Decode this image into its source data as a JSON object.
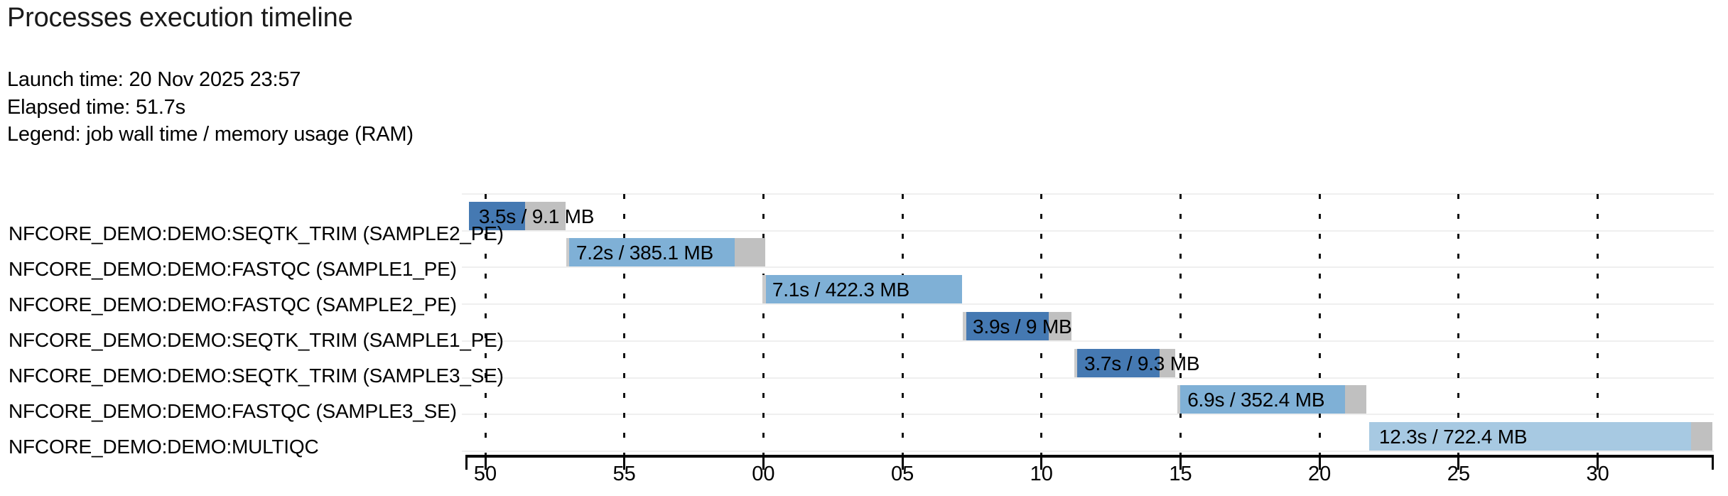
{
  "header": {
    "title": "Processes execution timeline",
    "launch_time": "Launch time: 20 Nov 2025 23:57",
    "elapsed_time": "Elapsed time: 51.7s",
    "legend": "Legend: job wall time / memory usage (RAM)"
  },
  "chart_data": {
    "type": "gantt-timeline",
    "title": "Processes execution timeline",
    "legend_note": "job wall time / memory usage (RAM)",
    "x_axis": {
      "unit": "seconds within minute (mm wraps from 23:57 to 23:58)",
      "tick_labels": [
        "50",
        "55",
        "00",
        "05",
        "10",
        "15",
        "20",
        "25",
        "30"
      ],
      "tick_seconds": [
        50,
        55,
        60,
        65,
        70,
        75,
        80,
        85,
        90
      ],
      "range_seconds": [
        49.3,
        94.1
      ],
      "grid": "dashed vertical gridlines at each tick"
    },
    "colors": {
      "seqtk_trim_bar": "#4579b2",
      "fastqc_bar": "#7fb0d6",
      "multiqc_bar": "#a7c9e2",
      "overhead_gray": "#c0c0c0",
      "queue_gray": "#cbcbcb",
      "row_separator": "#efefef",
      "gridline": "#111111",
      "axis": "#000000",
      "text": "#000000"
    },
    "rows": [
      {
        "label": "NFCORE_DEMO:DEMO:SEQTK_TRIM (SAMPLE2_PE)",
        "bar_label": "3.5s / 9.1 MB",
        "wall_time_s": 3.5,
        "memory": "9.1 MB",
        "color": "#4579b2",
        "start_s": 49.41,
        "queue_end_s": 49.41,
        "run_end_s": 51.43,
        "end_s": 52.89
      },
      {
        "label": "NFCORE_DEMO:DEMO:FASTQC (SAMPLE1_PE)",
        "bar_label": "7.2s / 385.1 MB",
        "wall_time_s": 7.2,
        "memory": "385.1 MB",
        "color": "#7fb0d6",
        "start_s": 52.91,
        "queue_end_s": 53.01,
        "run_end_s": 58.97,
        "end_s": 60.07
      },
      {
        "label": "NFCORE_DEMO:DEMO:FASTQC (SAMPLE2_PE)",
        "bar_label": "7.1s / 422.3 MB",
        "wall_time_s": 7.1,
        "memory": "422.3 MB",
        "color": "#7fb0d6",
        "start_s": 59.96,
        "queue_end_s": 60.09,
        "run_end_s": 67.14,
        "end_s": 67.14
      },
      {
        "label": "NFCORE_DEMO:DEMO:SEQTK_TRIM (SAMPLE1_PE)",
        "bar_label": "3.9s / 9 MB",
        "wall_time_s": 3.9,
        "memory": "9 MB",
        "color": "#4579b2",
        "start_s": 67.17,
        "queue_end_s": 67.3,
        "run_end_s": 70.26,
        "end_s": 71.08
      },
      {
        "label": "NFCORE_DEMO:DEMO:SEQTK_TRIM (SAMPLE3_SE)",
        "bar_label": "3.7s / 9.3 MB",
        "wall_time_s": 3.7,
        "memory": "9.3 MB",
        "color": "#4579b2",
        "start_s": 71.18,
        "queue_end_s": 71.28,
        "run_end_s": 74.25,
        "end_s": 74.81
      },
      {
        "label": "NFCORE_DEMO:DEMO:FASTQC (SAMPLE3_SE)",
        "bar_label": "6.9s / 352.4 MB",
        "wall_time_s": 6.9,
        "memory": "352.4 MB",
        "color": "#7fb0d6",
        "start_s": 74.89,
        "queue_end_s": 74.99,
        "run_end_s": 80.92,
        "end_s": 81.68
      },
      {
        "label": "NFCORE_DEMO:DEMO:MULTIQC",
        "bar_label": "12.3s / 722.4 MB",
        "wall_time_s": 12.3,
        "memory": "722.4 MB",
        "color": "#a7c9e2",
        "start_s": 81.78,
        "queue_end_s": 81.78,
        "run_end_s": 93.35,
        "end_s": 94.12
      }
    ]
  }
}
